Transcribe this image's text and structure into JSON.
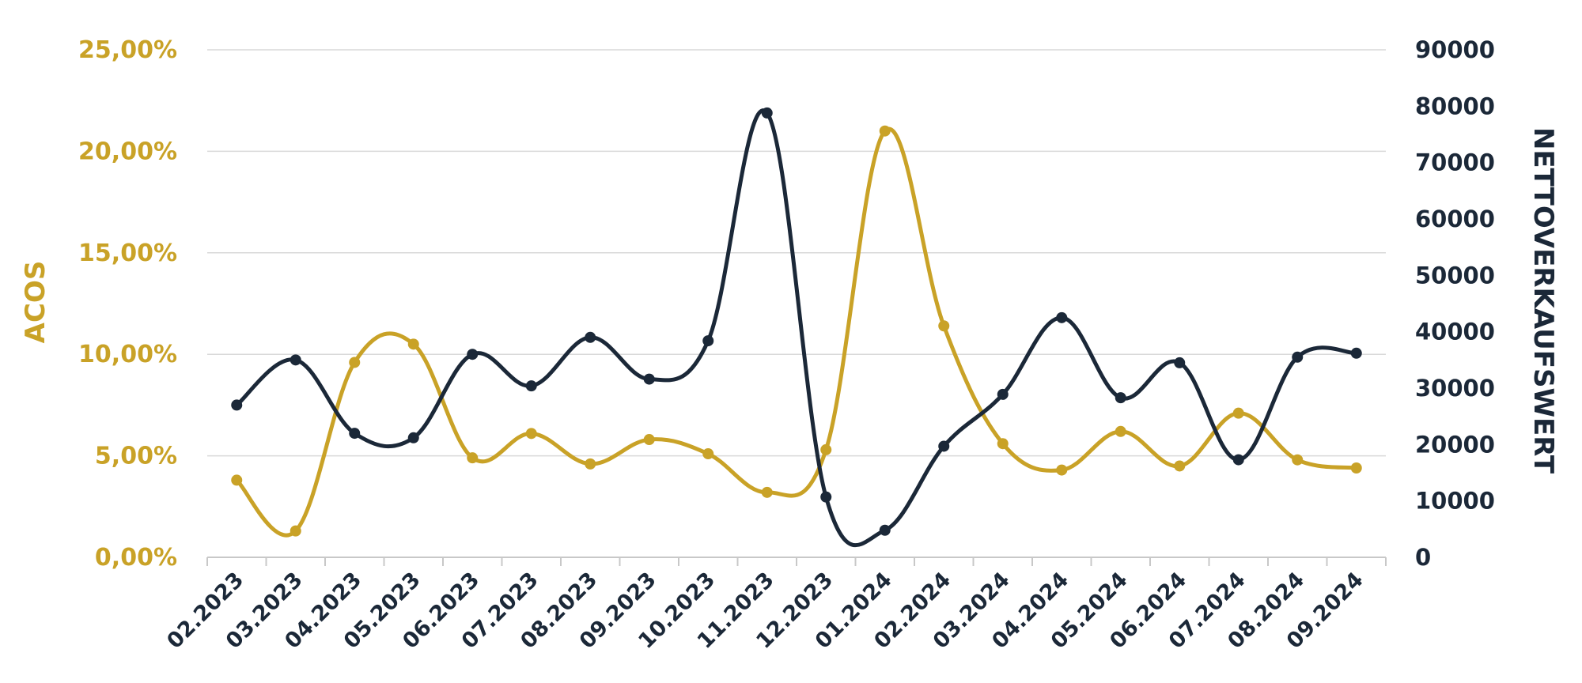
{
  "chart_data": {
    "type": "line",
    "categories": [
      "02.2023",
      "03.2023",
      "04.2023",
      "05.2023",
      "06.2023",
      "07.2023",
      "08.2023",
      "09.2023",
      "10.2023",
      "11.2023",
      "12.2023",
      "01.2024",
      "02.2024",
      "03.2024",
      "04.2024",
      "05.2024",
      "06.2024",
      "07.2024",
      "08.2024",
      "09.2024"
    ],
    "series": [
      {
        "axis": "left",
        "color": "#C9A227",
        "values": [
          3.8,
          1.3,
          9.6,
          10.5,
          4.9,
          6.1,
          4.6,
          5.8,
          5.1,
          3.2,
          5.3,
          21.0,
          11.4,
          5.6,
          4.3,
          6.2,
          4.5,
          7.1,
          4.8,
          4.4
        ]
      },
      {
        "axis": "right",
        "color": "#1B2838",
        "values": [
          27000,
          35000,
          22000,
          21200,
          36000,
          30400,
          39000,
          31600,
          38400,
          78800,
          10700,
          4800,
          19700,
          28900,
          42500,
          28300,
          34500,
          17300,
          35500,
          36200
        ]
      }
    ],
    "ylabel_left": "ACOS",
    "ylabel_right": "NETTOVERKAUFSWERT",
    "ylim_left": [
      0,
      25
    ],
    "ylim_right": [
      0,
      90000
    ],
    "yticks_left": [
      "0,00%",
      "5,00%",
      "10,00%",
      "15,00%",
      "20,00%",
      "25,00%"
    ],
    "yticks_right": [
      "0",
      "10000",
      "20000",
      "30000",
      "40000",
      "50000",
      "60000",
      "70000",
      "80000",
      "90000"
    ],
    "grid": true,
    "colors": {
      "acos": "#C9A227",
      "sales": "#1B2838",
      "grid": "#D9D9D9"
    }
  }
}
